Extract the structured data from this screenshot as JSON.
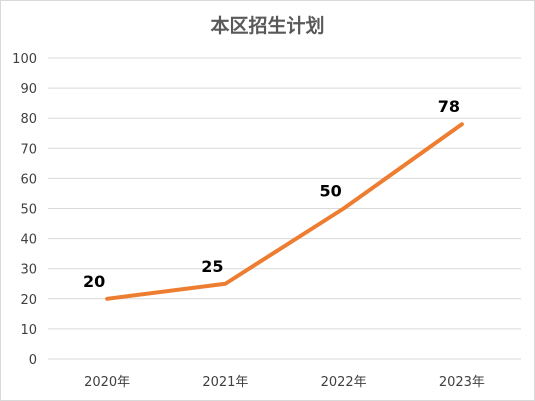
{
  "chart_data": {
    "type": "line",
    "title": "本区招生计划",
    "categories": [
      "2020年",
      "2021年",
      "2022年",
      "2023年"
    ],
    "series": [
      {
        "values": [
          20,
          25,
          50,
          78
        ]
      }
    ],
    "data_labels": [
      "20",
      "25",
      "50",
      "78"
    ],
    "xlabel": "",
    "ylabel": "",
    "ylim": [
      0,
      100
    ],
    "yticks": [
      0,
      10,
      20,
      30,
      40,
      50,
      60,
      70,
      80,
      90,
      100
    ],
    "grid": true,
    "legend": "none",
    "line_color": "#ed7d31",
    "grid_color": "#d9d9d9"
  }
}
